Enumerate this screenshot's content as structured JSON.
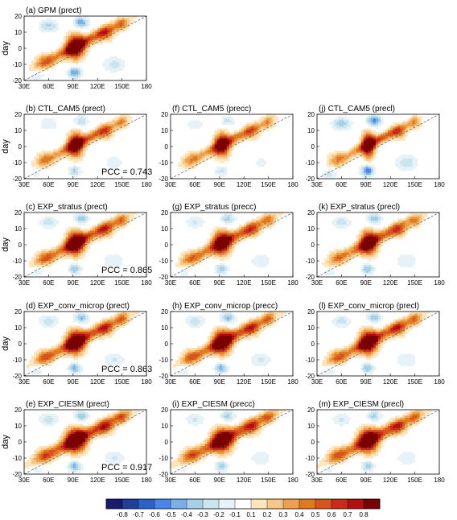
{
  "figure": {
    "ylabel": "day",
    "pcc_prefix": "PCC = "
  },
  "chart_data": {
    "type": "heatmap",
    "x_ticks": [
      "30E",
      "60E",
      "90E",
      "120E",
      "150E",
      "180"
    ],
    "y_ticks": [
      "-20",
      "-10",
      "0",
      "10",
      "20"
    ],
    "xlim": [
      30,
      180
    ],
    "ylim": [
      -20,
      20
    ],
    "colorbar": {
      "levels": [
        "-0.8",
        "-0.7",
        "-0.6",
        "-0.5",
        "-0.4",
        "-0.3",
        "-0.2",
        "-0.1",
        "0.1",
        "0.2",
        "0.3",
        "0.4",
        "0.5",
        "0.6",
        "0.7",
        "0.8"
      ],
      "colors": [
        "#1a1a6e",
        "#1f3f9a",
        "#2a62c8",
        "#4a86e8",
        "#7ab0ea",
        "#a6cfe8",
        "#cbe5ef",
        "#e6f2f7",
        "#ffffff",
        "#fde6bd",
        "#f6c888",
        "#eea04f",
        "#e07a20",
        "#d9531e",
        "#c92a1a",
        "#b01010",
        "#7a0000"
      ]
    },
    "panels": [
      {
        "id": "a",
        "title": "(a) GPM (prect)",
        "pcc": ""
      },
      {
        "id": "b",
        "title": "(b) CTL_CAM5 (prect)",
        "pcc": "0.743"
      },
      {
        "id": "f",
        "title": "(f) CTL_CAM5 (precc)",
        "pcc": ""
      },
      {
        "id": "j",
        "title": "(j) CTL_CAM5 (precl)",
        "pcc": ""
      },
      {
        "id": "c",
        "title": "(c) EXP_stratus (prect)",
        "pcc": "0.865"
      },
      {
        "id": "g",
        "title": "(g) EXP_stratus (precc)",
        "pcc": ""
      },
      {
        "id": "k",
        "title": "(k) EXP_stratus (precl)",
        "pcc": ""
      },
      {
        "id": "d",
        "title": "(d) EXP_conv_microp (prect)",
        "pcc": "0.863"
      },
      {
        "id": "h",
        "title": "(h) EXP_conv_microp (precc)",
        "pcc": ""
      },
      {
        "id": "l",
        "title": "(l) EXP_conv_microp (precl)",
        "pcc": ""
      },
      {
        "id": "e",
        "title": "(e) EXP_CIESM (prect)",
        "pcc": "0.917"
      },
      {
        "id": "i",
        "title": "(i) EXP_CIESM (precc)",
        "pcc": ""
      },
      {
        "id": "m",
        "title": "(m) EXP_CIESM (precl)",
        "pcc": ""
      }
    ]
  }
}
